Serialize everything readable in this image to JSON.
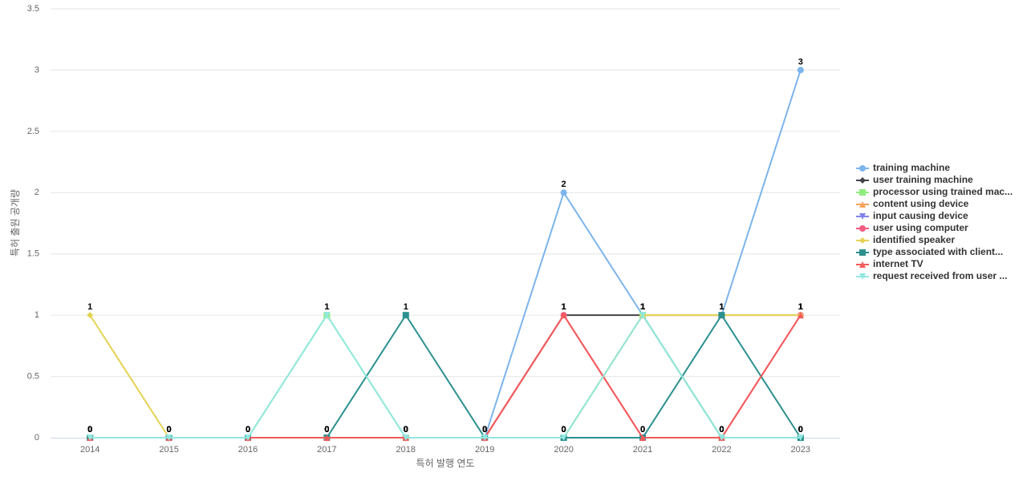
{
  "chart_data": {
    "type": "line",
    "x_label": "특허 발행 연도",
    "y_label": "특허 출원 공개량",
    "categories": [
      "2014",
      "2015",
      "2016",
      "2017",
      "2018",
      "2019",
      "2020",
      "2021",
      "2022",
      "2023"
    ],
    "ylim": [
      0,
      3.5
    ],
    "yticks": [
      0,
      0.5,
      1,
      1.5,
      2,
      2.5,
      3,
      3.5
    ],
    "grid": true,
    "series": [
      {
        "name": "training machine",
        "color": "#7cb5ec",
        "values": [
          0,
          0,
          0,
          0,
          0,
          0,
          2,
          1,
          1,
          3
        ]
      },
      {
        "name": "user training machine",
        "color": "#434348",
        "values": [
          0,
          0,
          0,
          0,
          0,
          0,
          1,
          1,
          0,
          0
        ]
      },
      {
        "name": "processor using trained mac...",
        "color": "#90ed7d",
        "values": [
          0,
          0,
          0,
          1,
          0,
          0,
          0,
          1,
          0,
          0
        ]
      },
      {
        "name": "content using device",
        "color": "#f7a35c",
        "values": [
          0,
          0,
          0,
          0,
          0,
          0,
          0,
          1,
          1,
          1
        ]
      },
      {
        "name": "input causing device",
        "color": "#8085e9",
        "values": [
          0,
          0,
          0,
          0,
          0,
          0,
          0,
          0,
          0,
          0
        ]
      },
      {
        "name": "user using computer",
        "color": "#f15c80",
        "values": [
          0,
          0,
          0,
          0,
          0,
          0,
          1,
          0,
          0,
          1
        ]
      },
      {
        "name": "identified speaker",
        "color": "#e4d354",
        "values": [
          1,
          0,
          0,
          0,
          0,
          0,
          0,
          1,
          1,
          1
        ]
      },
      {
        "name": "type associated with client...",
        "color": "#2b908f",
        "values": [
          0,
          0,
          0,
          0,
          1,
          0,
          0,
          0,
          1,
          0
        ]
      },
      {
        "name": "internet TV",
        "color": "#f45b5b",
        "values": [
          0,
          0,
          0,
          0,
          0,
          0,
          1,
          0,
          0,
          1
        ]
      },
      {
        "name": "request received from user ...",
        "color": "#91e8e1",
        "values": [
          0,
          0,
          0,
          1,
          0,
          0,
          0,
          1,
          0,
          0
        ]
      }
    ]
  }
}
